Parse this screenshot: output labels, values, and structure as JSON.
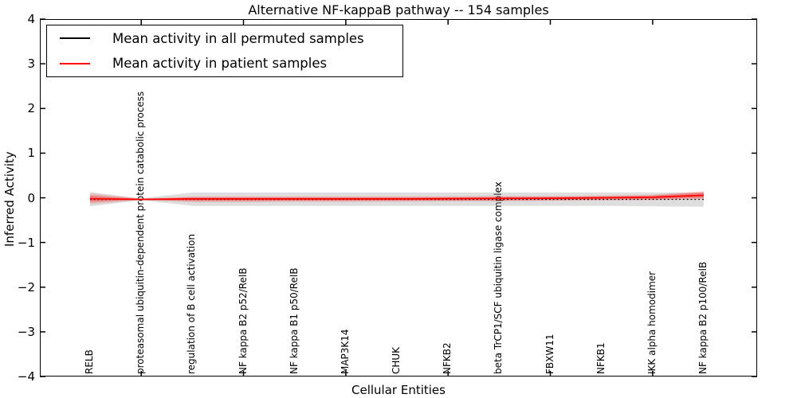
{
  "title": "Alternative NF-kappaB pathway -- 154 samples",
  "axes": {
    "ylabel": "Inferred Activity",
    "xlabel": "Cellular Entities",
    "yticks": [
      {
        "label": "4",
        "value": 4
      },
      {
        "label": "3",
        "value": 3
      },
      {
        "label": "2",
        "value": 2
      },
      {
        "label": "1",
        "value": 1
      },
      {
        "label": "0",
        "value": 0
      },
      {
        "label": "−1",
        "value": -1
      },
      {
        "label": "−2",
        "value": -2
      },
      {
        "label": "−3",
        "value": -3
      },
      {
        "label": "−4",
        "value": -4
      }
    ]
  },
  "legend": {
    "items": [
      {
        "label": "Mean activity in all permuted samples",
        "color": "#000000"
      },
      {
        "label": "Mean activity in patient samples",
        "color": "#ff0000"
      }
    ]
  },
  "chart_data": {
    "type": "line",
    "title": "Alternative NF-kappaB pathway -- 154 samples",
    "xlabel": "Cellular Entities",
    "ylabel": "Inferred Activity",
    "ylim": [
      -4,
      4
    ],
    "grid": false,
    "legend_position": "upper left",
    "categories": [
      "RELB",
      "proteasomal ubiquitin-dependent protein catabolic process",
      "regulation of B cell activation",
      "NF kappa B2 p52/RelB",
      "NF kappa B1 p50/RelB",
      "MAP3K14",
      "CHUK",
      "NFKB2",
      "beta TrCP1/SCF ubiquitin ligase complex",
      "FBXW11",
      "NFKB1",
      "IKK alpha homodimer",
      "NF kappa B2 p100/RelB"
    ],
    "series": [
      {
        "name": "Mean activity in all permuted samples",
        "color": "#000000",
        "line_style": "dotted",
        "values": [
          -0.035,
          -0.035,
          -0.035,
          -0.035,
          -0.035,
          -0.035,
          -0.035,
          -0.035,
          -0.035,
          -0.035,
          -0.035,
          -0.035,
          -0.035
        ]
      },
      {
        "name": "Mean activity in patient samples",
        "color": "#ff0000",
        "line_style": "solid",
        "values": [
          -0.02,
          -0.035,
          -0.025,
          -0.025,
          -0.025,
          -0.025,
          -0.025,
          -0.02,
          -0.015,
          -0.01,
          0.0,
          0.01,
          0.055
        ]
      }
    ],
    "bands": [
      {
        "name": "permuted-samples-range",
        "color": "#888888",
        "opacity": 0.28,
        "upper": [
          0.13,
          -0.015,
          0.12,
          0.12,
          0.12,
          0.12,
          0.12,
          0.12,
          0.12,
          0.12,
          0.12,
          0.12,
          0.12
        ],
        "lower": [
          -0.19,
          -0.055,
          -0.18,
          -0.18,
          -0.18,
          -0.18,
          -0.18,
          -0.18,
          -0.18,
          -0.18,
          -0.18,
          -0.19,
          -0.2
        ]
      },
      {
        "name": "patient-samples-range-outer",
        "color": "#ff0000",
        "opacity": 0.16,
        "upper": [
          0.1,
          -0.02,
          0.03,
          0.03,
          0.03,
          0.03,
          0.03,
          0.03,
          0.04,
          0.04,
          0.05,
          0.07,
          0.15
        ],
        "lower": [
          -0.14,
          -0.05,
          -0.1,
          -0.1,
          -0.09,
          -0.09,
          -0.09,
          -0.08,
          -0.08,
          -0.07,
          -0.06,
          -0.05,
          -0.03
        ]
      },
      {
        "name": "patient-samples-range-inner",
        "color": "#ff0000",
        "opacity": 0.32,
        "upper": [
          0.05,
          -0.025,
          0.01,
          0.01,
          0.01,
          0.01,
          0.01,
          0.01,
          0.02,
          0.02,
          0.03,
          0.05,
          0.12
        ],
        "lower": [
          -0.09,
          -0.045,
          -0.07,
          -0.07,
          -0.065,
          -0.065,
          -0.06,
          -0.06,
          -0.055,
          -0.05,
          -0.04,
          -0.03,
          0.0
        ]
      }
    ],
    "layout": {
      "xtick_indices": [
        1,
        3,
        5,
        7,
        9,
        11
      ]
    }
  }
}
